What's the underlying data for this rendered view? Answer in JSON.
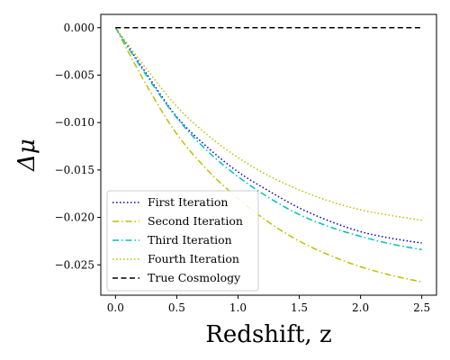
{
  "chart_data": {
    "type": "line",
    "xlabel": "Redshift, z",
    "ylabel": "Δμ",
    "xlim": [
      -0.12,
      2.62
    ],
    "ylim": [
      -0.0282,
      0.0014
    ],
    "xticks": [
      0.0,
      0.5,
      1.0,
      1.5,
      2.0,
      2.5
    ],
    "xtick_labels": [
      "0.0",
      "0.5",
      "1.0",
      "1.5",
      "2.0",
      "2.5"
    ],
    "yticks": [
      0.0,
      -0.005,
      -0.01,
      -0.015,
      -0.02,
      -0.025
    ],
    "ytick_labels": [
      "0.000",
      "−0.005",
      "−0.010",
      "−0.015",
      "−0.020",
      "−0.025"
    ],
    "grid": false,
    "legend": "lower-left",
    "x": [
      0.0,
      0.25,
      0.5,
      0.75,
      1.0,
      1.25,
      1.5,
      1.75,
      2.0,
      2.25,
      2.5
    ],
    "series": [
      {
        "name": "First Iteration",
        "color": "#0000cc",
        "style": "dotted",
        "values": [
          0.0,
          -0.0048,
          -0.0094,
          -0.0126,
          -0.0152,
          -0.0172,
          -0.019,
          -0.0204,
          -0.0215,
          -0.0222,
          -0.0227
        ]
      },
      {
        "name": "Second Iteration",
        "color": "#bfbf00",
        "style": "dashdot",
        "values": [
          0.0,
          -0.006,
          -0.0112,
          -0.015,
          -0.018,
          -0.0205,
          -0.0225,
          -0.024,
          -0.0252,
          -0.0261,
          -0.0268
        ]
      },
      {
        "name": "Third Iteration",
        "color": "#00bfbf",
        "style": "dashdot",
        "values": [
          0.0,
          -0.005,
          -0.0095,
          -0.013,
          -0.0157,
          -0.0179,
          -0.0197,
          -0.021,
          -0.022,
          -0.0228,
          -0.0234
        ]
      },
      {
        "name": "Fourth Iteration",
        "color": "#bfbf00",
        "style": "dotted",
        "values": [
          0.0,
          -0.0043,
          -0.0083,
          -0.0113,
          -0.0137,
          -0.0156,
          -0.0171,
          -0.0183,
          -0.0192,
          -0.0198,
          -0.0203
        ]
      },
      {
        "name": "True Cosmology",
        "color": "#000000",
        "style": "dashed",
        "values": [
          0.0,
          0.0,
          0.0,
          0.0,
          0.0,
          0.0,
          0.0,
          0.0,
          0.0,
          0.0,
          0.0
        ]
      }
    ]
  }
}
